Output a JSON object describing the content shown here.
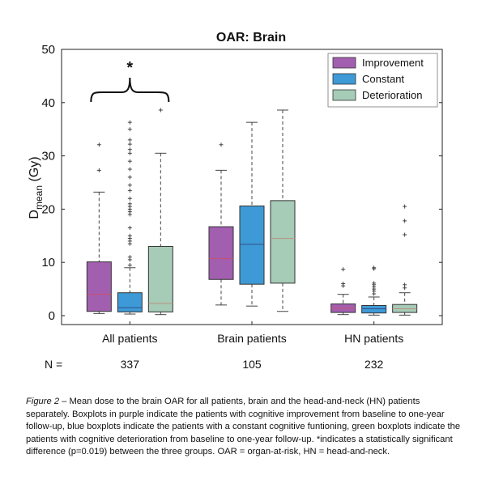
{
  "chart_data": {
    "type": "boxplot",
    "title": "OAR: Brain",
    "ylabel_main": "D",
    "ylabel_sub": "mean",
    "ylabel_unit": "(Gy)",
    "ylim": [
      0,
      50
    ],
    "yticks": [
      "0",
      "10",
      "20",
      "30",
      "40",
      "50"
    ],
    "categories": [
      "All patients",
      "Brain patients",
      "HN patients"
    ],
    "n_label": "N =",
    "n_values": [
      "337",
      "105",
      "232"
    ],
    "legend_position": "top-right",
    "series": [
      {
        "name": "Improvement",
        "color": "#a25fb0",
        "median_color": "#c9506e",
        "boxes": [
          {
            "min": 0.4,
            "q1": 0.8,
            "median": 4.0,
            "q3": 10.1,
            "max": 23.2,
            "outliers": [
              27.3,
              32.1
            ]
          },
          {
            "min": 2.0,
            "q1": 6.8,
            "median": 10.7,
            "q3": 16.7,
            "max": 27.3,
            "outliers": [
              32.1
            ]
          },
          {
            "min": 0.2,
            "q1": 0.6,
            "median": 1.4,
            "q3": 2.2,
            "max": 4.0,
            "outliers": [
              5.6,
              6.0,
              8.7
            ]
          }
        ]
      },
      {
        "name": "Constant",
        "color": "#3e9ad6",
        "median_color": "#2f4f8a",
        "boxes": [
          {
            "min": 0.3,
            "q1": 0.7,
            "median": 1.5,
            "q3": 4.3,
            "max": 9.0,
            "outliers": [
              9.5,
              10.5,
              11.0,
              13.5,
              14.0,
              14.5,
              15.0,
              16.5,
              19.0,
              19.5,
              20.0,
              20.5,
              21.0,
              22.0,
              23.5,
              24.5,
              26.0,
              27.5,
              29.0,
              30.5,
              31.2,
              32.2,
              33.0,
              35.0,
              36.3
            ]
          },
          {
            "min": 1.8,
            "q1": 5.9,
            "median": 13.4,
            "q3": 20.6,
            "max": 36.3,
            "outliers": []
          },
          {
            "min": 0.1,
            "q1": 0.5,
            "median": 1.3,
            "q3": 1.9,
            "max": 3.5,
            "outliers": [
              4.1,
              4.6,
              5.0,
              5.4,
              5.8,
              6.1,
              8.8,
              9.0
            ]
          }
        ]
      },
      {
        "name": "Deterioration",
        "color": "#a6cbb7",
        "median_color": "#b89580",
        "boxes": [
          {
            "min": 0.2,
            "q1": 0.7,
            "median": 2.3,
            "q3": 13.0,
            "max": 30.5,
            "outliers": [
              38.6
            ]
          },
          {
            "min": 0.8,
            "q1": 6.1,
            "median": 14.5,
            "q3": 21.6,
            "max": 38.6,
            "outliers": []
          },
          {
            "min": 0.1,
            "q1": 0.6,
            "median": 1.3,
            "q3": 2.1,
            "max": 4.3,
            "outliers": [
              5.2,
              5.8,
              15.2,
              17.8,
              20.5
            ]
          }
        ]
      }
    ],
    "annotation": "*"
  },
  "caption": {
    "label": "Figure 2",
    "text": " – Mean dose to the brain OAR for all patients, brain and the head-and-neck (HN) patients separately. Boxplots in purple indicate the patients with cognitive improvement from baseline to one-year follow-up, blue boxplots indicate the patients with a constant cognitive funtioning, green boxplots indicate the patients with cognitive deterioration from baseline to one-year follow-up. *indicates a statistically significant difference (p=0.019) between the three groups. OAR = organ-at-risk, HN = head-and-neck."
  }
}
